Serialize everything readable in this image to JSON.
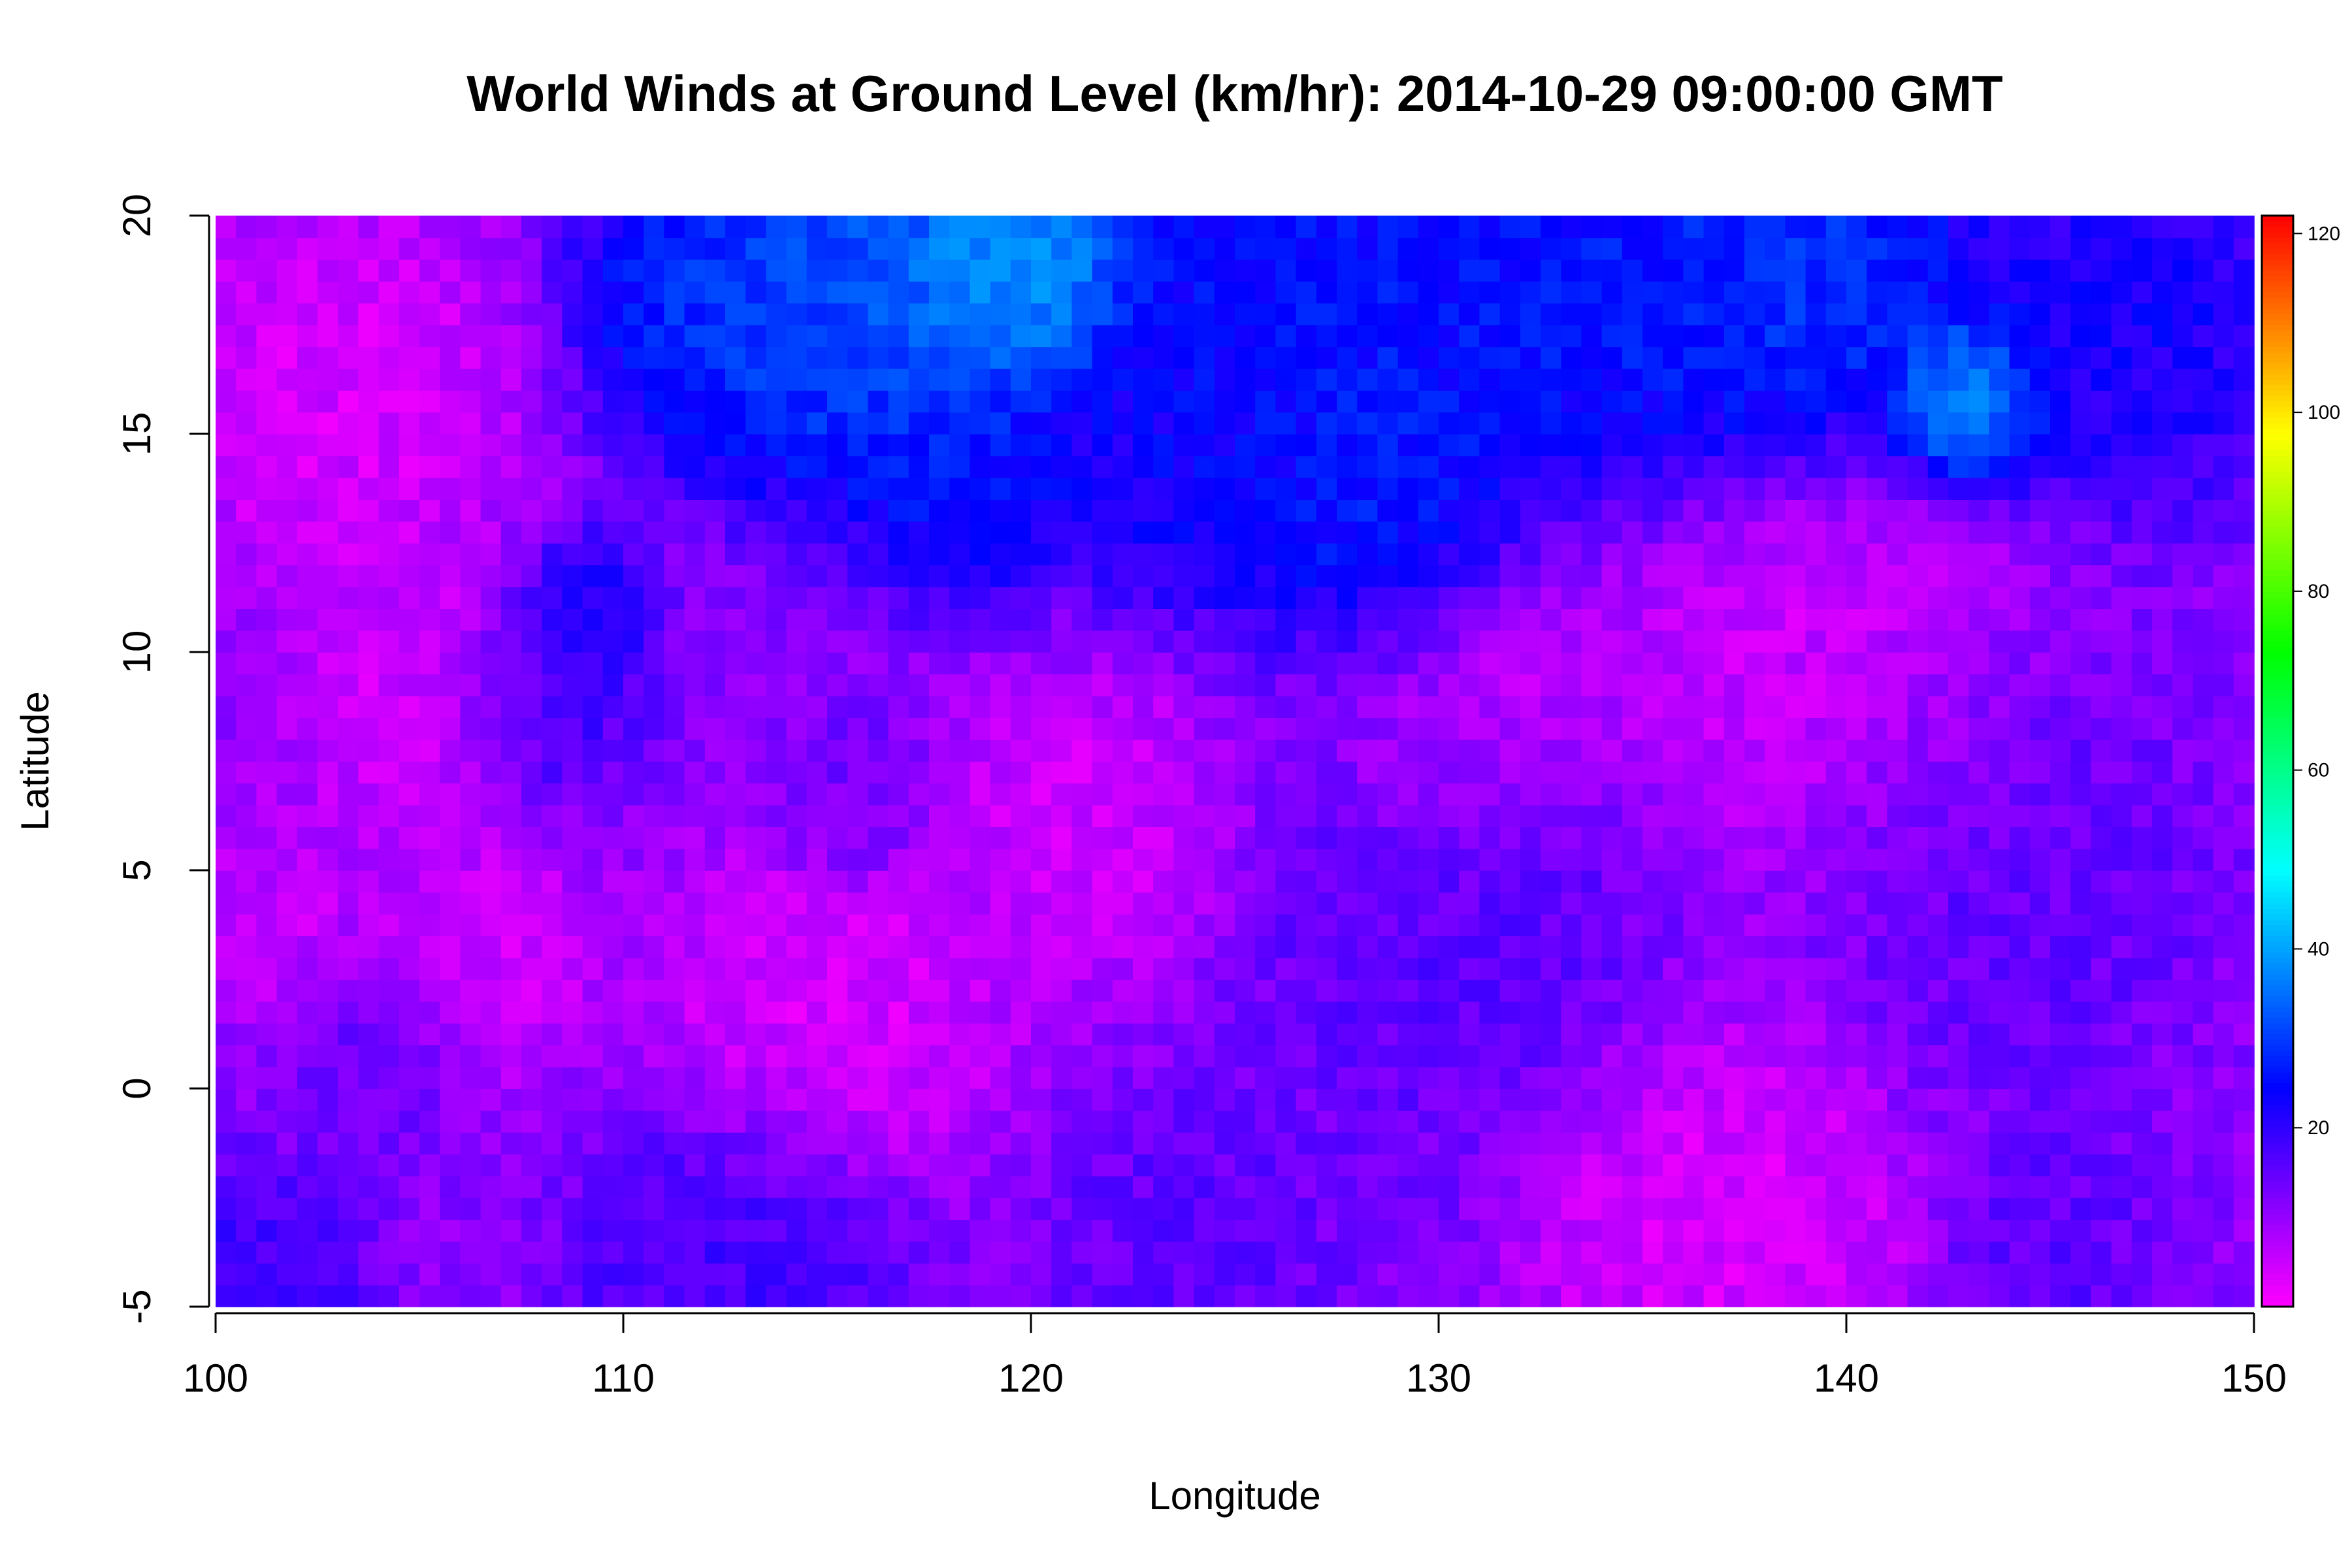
{
  "chart_data": {
    "type": "heatmap",
    "title": "World Winds at Ground Level (km/hr): 2014-10-29 09:00:00 GMT",
    "xlabel": "Longitude",
    "ylabel": "Latitude",
    "xlim": [
      100,
      150
    ],
    "ylim": [
      -5,
      20
    ],
    "x_ticks": [
      "100",
      "110",
      "120",
      "130",
      "140",
      "150"
    ],
    "y_ticks": [
      "-5",
      "0",
      "5",
      "10",
      "15",
      "20"
    ],
    "colorbar": {
      "ticks": [
        "20",
        "40",
        "60",
        "80",
        "100",
        "120"
      ],
      "range": [
        0,
        122
      ],
      "colors": [
        "#ff00ff",
        "#0000ff",
        "#00ffff",
        "#00ff00",
        "#ffff00",
        "#ff0000"
      ]
    },
    "grid": false,
    "grid_resolution_deg": 0.5,
    "speed_field": [
      {
        "lon": 119.5,
        "lat": 19,
        "speed": 44,
        "spread": 2.2
      },
      {
        "lon": 116,
        "lat": 18.5,
        "speed": 34,
        "spread": 3.5
      },
      {
        "lon": 112.5,
        "lat": 18,
        "speed": 30,
        "spread": 2.5
      },
      {
        "lon": 127,
        "lat": 17.5,
        "speed": 28,
        "spread": 4
      },
      {
        "lon": 134,
        "lat": 18.5,
        "speed": 28,
        "spread": 4
      },
      {
        "lon": 139,
        "lat": 18.5,
        "speed": 31,
        "spread": 3
      },
      {
        "lon": 143,
        "lat": 15.8,
        "speed": 42,
        "spread": 1.4
      },
      {
        "lon": 147,
        "lat": 17.5,
        "speed": 24,
        "spread": 3
      },
      {
        "lon": 129,
        "lat": 12.5,
        "speed": 30,
        "spread": 2.5
      },
      {
        "lon": 124,
        "lat": 14.5,
        "speed": 24,
        "spread": 2.5
      },
      {
        "lon": 118.5,
        "lat": 14,
        "speed": 27,
        "spread": 2
      },
      {
        "lon": 109,
        "lat": 11,
        "speed": 24,
        "spread": 1.2
      },
      {
        "lon": 108,
        "lat": 9,
        "speed": 20,
        "spread": 1.8
      },
      {
        "lon": 131,
        "lat": 4.5,
        "speed": 17,
        "spread": 4
      },
      {
        "lon": 143,
        "lat": 5,
        "speed": 16,
        "spread": 4
      },
      {
        "lon": 113,
        "lat": -4,
        "speed": 19,
        "spread": 3
      },
      {
        "lon": 101,
        "lat": -4.5,
        "speed": 19,
        "spread": 2
      },
      {
        "lon": 124,
        "lat": -3.5,
        "speed": 16,
        "spread": 2.5
      },
      {
        "lon": 104,
        "lat": 1,
        "speed": 15,
        "spread": 1.5
      },
      {
        "lon": 128.5,
        "lat": -1.5,
        "speed": 14,
        "spread": 2
      },
      {
        "lon": 145,
        "lat": -3.5,
        "speed": 16,
        "spread": 2
      },
      {
        "lon": 115.5,
        "lat": 6.5,
        "speed": 14,
        "spread": 1.5
      },
      {
        "lon": 131,
        "lat": 9,
        "speed": 3,
        "spread": 3
      },
      {
        "lon": 139,
        "lat": 9,
        "speed": 4,
        "spread": 4
      },
      {
        "lon": 103,
        "lat": 16,
        "speed": 3,
        "spread": 3
      },
      {
        "lon": 105,
        "lat": 9,
        "speed": 4,
        "spread": 2.5
      },
      {
        "lon": 115,
        "lat": 1.5,
        "speed": 3,
        "spread": 3
      },
      {
        "lon": 121.5,
        "lat": 6,
        "speed": 4,
        "spread": 2.5
      },
      {
        "lon": 137,
        "lat": -2.5,
        "speed": 3,
        "spread": 3.5
      },
      {
        "lon": 106.5,
        "lat": 3,
        "speed": 4,
        "spread": 2
      },
      {
        "lon": 101.5,
        "lat": 4,
        "speed": 5,
        "spread": 1.5
      }
    ]
  }
}
